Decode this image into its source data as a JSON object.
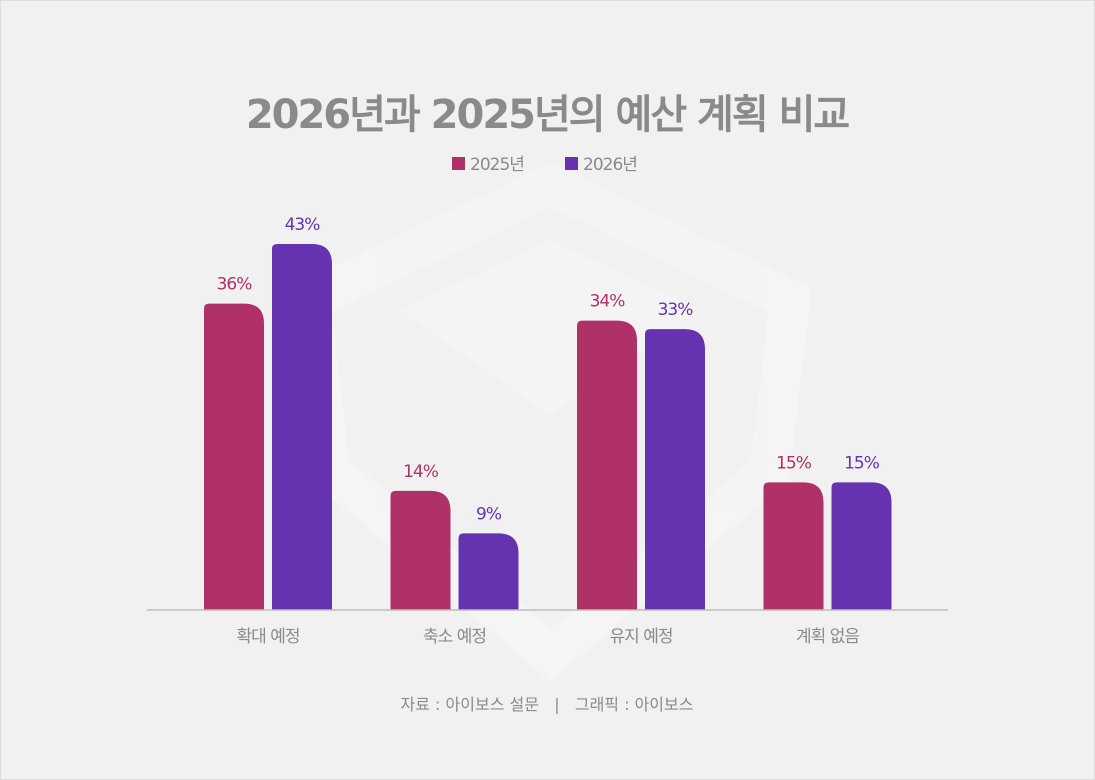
{
  "chart_data": {
    "type": "bar",
    "title": "2026년과 2025년의 예산 계획 비교",
    "categories": [
      "확대 예정",
      "축소 예정",
      "유지 예정",
      "계획 없음"
    ],
    "series": [
      {
        "name": "2025년",
        "values": [
          36,
          14,
          34,
          15
        ],
        "color": "#b03068"
      },
      {
        "name": "2026년",
        "values": [
          43,
          9,
          33,
          15
        ],
        "color": "#6633b0"
      }
    ],
    "value_suffix": "%",
    "ylim": [
      0,
      45
    ],
    "grid": false,
    "legend": "top-center",
    "xlabel": "",
    "ylabel": ""
  },
  "footer": "자료 : 아이보스 설문   |   그래픽 : 아이보스"
}
